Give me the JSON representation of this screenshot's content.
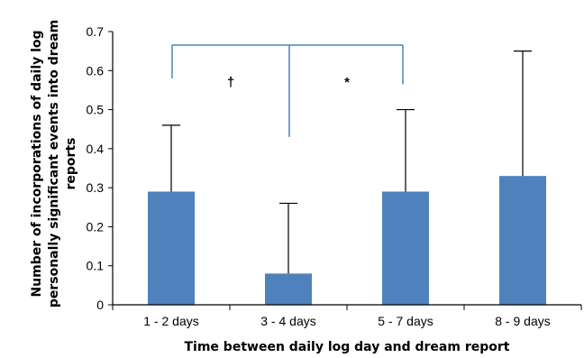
{
  "chart_data": {
    "type": "bar",
    "categories": [
      "1 - 2 days",
      "3 - 4 days",
      "5 - 7 days",
      "8 - 9 days"
    ],
    "values": [
      0.29,
      0.08,
      0.29,
      0.33
    ],
    "error_upper": [
      0.46,
      0.26,
      0.5,
      0.65
    ],
    "ylim": [
      0,
      0.7
    ],
    "yticks": [
      "0",
      "0.1",
      "0.2",
      "0.3",
      "0.4",
      "0.5",
      "0.6",
      "0.7"
    ],
    "xlabel": "Time between daily log day and dream report",
    "ylabel_lines": [
      "Number of incorporations of daily log",
      "personally significant events into dream",
      "reports"
    ],
    "grid": false,
    "bar_color": "#4f81bd",
    "bracket_color": "#4f81bd",
    "annotations": [
      {
        "text": "†",
        "between": [
          "1 - 2 days",
          "3 - 4 days"
        ]
      },
      {
        "text": "*",
        "between": [
          "3 - 4 days",
          "5 - 7 days"
        ]
      }
    ]
  }
}
